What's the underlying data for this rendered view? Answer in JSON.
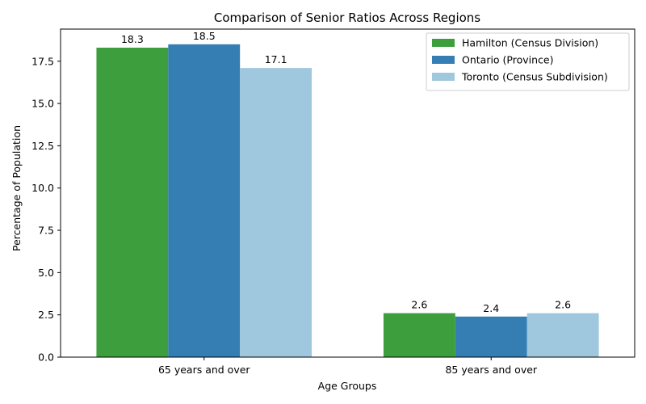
{
  "chart_data": {
    "type": "bar",
    "title": "Comparison of Senior Ratios Across Regions",
    "xlabel": "Age Groups",
    "ylabel": "Percentage of Population",
    "categories": [
      "65 years and over",
      "85 years and over"
    ],
    "series": [
      {
        "name": "Hamilton (Census Division)",
        "color": "#3d9e3d",
        "values": [
          18.3,
          2.6
        ]
      },
      {
        "name": "Ontario (Province)",
        "color": "#357eb4",
        "values": [
          18.5,
          2.4
        ]
      },
      {
        "name": "Toronto (Census Subdivision)",
        "color": "#9fc7dd",
        "values": [
          17.1,
          2.6
        ]
      }
    ],
    "ylim": [
      0,
      19.4
    ],
    "yticks": [
      0.0,
      2.5,
      5.0,
      7.5,
      10.0,
      12.5,
      15.0,
      17.5
    ],
    "ytick_labels": [
      "0.0",
      "2.5",
      "5.0",
      "7.5",
      "10.0",
      "12.5",
      "15.0",
      "17.5"
    ],
    "grid": false,
    "legend_position": "top-right"
  }
}
